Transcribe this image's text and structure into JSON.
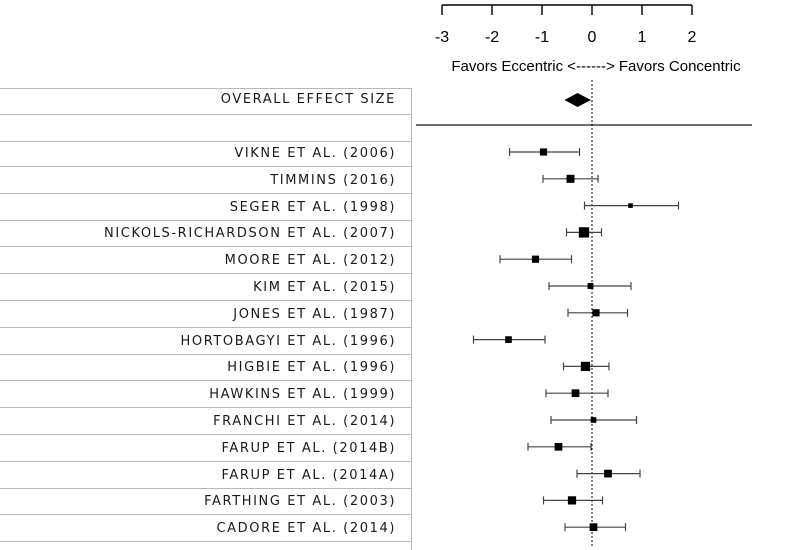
{
  "chart_data": {
    "type": "forest",
    "x_ticks": [
      -3,
      -2,
      -1,
      0,
      1,
      2
    ],
    "xlim": [
      -3,
      2
    ],
    "direction_label": "Favors Eccentric <------> Favors Concentric",
    "overall": {
      "label": "OVERALL EFFECT SIZE",
      "estimate": -0.29,
      "ci": [
        -0.55,
        -0.02
      ]
    },
    "studies": [
      {
        "label": "VIKNE ET AL. (2006)",
        "estimate": -0.97,
        "ci": [
          -1.65,
          -0.25
        ],
        "weight": 2
      },
      {
        "label": "TIMMINS (2016)",
        "estimate": -0.43,
        "ci": [
          -0.98,
          0.12
        ],
        "weight": 2.3
      },
      {
        "label": "SEGER ET AL. (1998)",
        "estimate": 0.77,
        "ci": [
          -0.15,
          1.73
        ],
        "weight": 1
      },
      {
        "label": "NICKOLS-RICHARDSON ET AL. (2007)",
        "estimate": -0.16,
        "ci": [
          -0.51,
          0.19
        ],
        "weight": 3.2
      },
      {
        "label": "MOORE ET AL. (2012)",
        "estimate": -1.13,
        "ci": [
          -1.84,
          -0.41
        ],
        "weight": 2
      },
      {
        "label": "KIM ET AL. (2015)",
        "estimate": -0.03,
        "ci": [
          -0.86,
          0.78
        ],
        "weight": 1.5
      },
      {
        "label": "JONES ET AL. (1987)",
        "estimate": 0.08,
        "ci": [
          -0.48,
          0.71
        ],
        "weight": 2
      },
      {
        "label": "HORTOBAGYI ET AL. (1996)",
        "estimate": -1.67,
        "ci": [
          -2.37,
          -0.94
        ],
        "weight": 1.8
      },
      {
        "label": "HIGBIE ET AL. (1996)",
        "estimate": -0.13,
        "ci": [
          -0.57,
          0.34
        ],
        "weight": 2.8
      },
      {
        "label": "HAWKINS ET AL. (1999)",
        "estimate": -0.33,
        "ci": [
          -0.92,
          0.32
        ],
        "weight": 2.2
      },
      {
        "label": "FRANCHI ET AL. (2014)",
        "estimate": 0.03,
        "ci": [
          -0.82,
          0.89
        ],
        "weight": 1.4
      },
      {
        "label": "FARUP ET AL. (2014B)",
        "estimate": -0.67,
        "ci": [
          -1.28,
          -0.02
        ],
        "weight": 2.2
      },
      {
        "label": "FARUP ET AL. (2014A)",
        "estimate": 0.32,
        "ci": [
          -0.3,
          0.96
        ],
        "weight": 2.2
      },
      {
        "label": "FARTHING ET AL. (2003)",
        "estimate": -0.4,
        "ci": [
          -0.97,
          0.21
        ],
        "weight": 2.4
      },
      {
        "label": "CADORE ET AL. (2014)",
        "estimate": 0.03,
        "ci": [
          -0.54,
          0.67
        ],
        "weight": 2.2
      }
    ]
  }
}
